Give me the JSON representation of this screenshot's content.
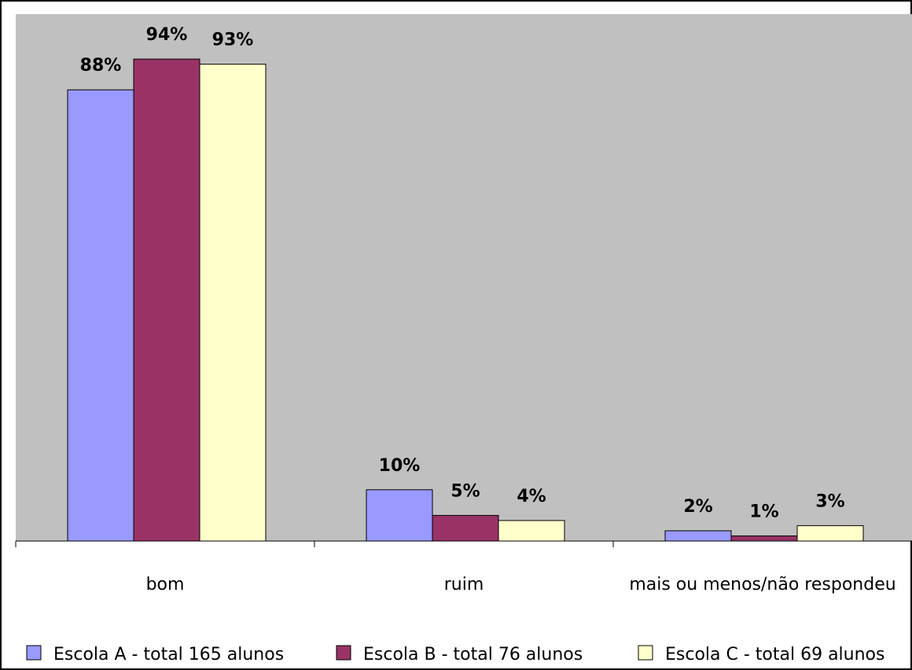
{
  "chart_data": {
    "type": "bar",
    "title": "",
    "xlabel": "",
    "ylabel": "",
    "categories": [
      "bom",
      "ruim",
      "mais ou menos/não respondeu"
    ],
    "series": [
      {
        "name": "Escola A - total 165 alunos",
        "values": [
          88,
          10,
          2
        ],
        "labels": [
          "88%",
          "10%",
          "2%"
        ],
        "color": "#9999ff"
      },
      {
        "name": "Escola B - total 76 alunos",
        "values": [
          94,
          5,
          1
        ],
        "labels": [
          "94%",
          "5%",
          "1%"
        ],
        "color": "#993366"
      },
      {
        "name": "Escola C - total 69 alunos",
        "values": [
          93,
          4,
          3
        ],
        "labels": [
          "93%",
          "4%",
          "3%"
        ],
        "color": "#ffffcc"
      }
    ],
    "ylim": [
      0,
      100
    ],
    "unit": "%",
    "grid": false,
    "legend_position": "bottom",
    "plot_background": "#c0c0c0"
  }
}
